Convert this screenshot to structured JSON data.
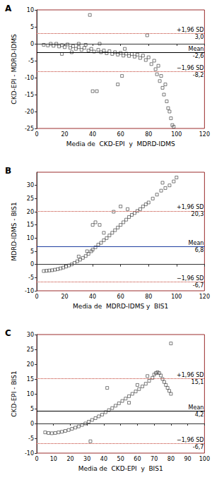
{
  "chart_data": [
    {
      "type": "scatter",
      "title": "A",
      "xlabel": "Media de  CKD-EPI  y  MDRD-IDMS",
      "ylabel": "CKD-EPI - MDRD-IDMS",
      "xlim": [
        0,
        120
      ],
      "xticks": [
        0,
        20,
        40,
        60,
        80,
        100,
        120
      ],
      "ylim": [
        -25,
        10
      ],
      "yticks": [
        -25,
        -20,
        -15,
        -10,
        -5,
        0,
        5,
        10
      ],
      "grid": false,
      "color": "#333333",
      "marker": "square_open",
      "x": [
        5,
        8,
        10,
        12,
        14,
        16,
        18,
        20,
        22,
        24,
        26,
        28,
        30,
        32,
        34,
        35,
        37,
        38,
        39,
        40,
        41,
        43,
        44,
        46,
        48,
        50,
        52,
        54,
        56,
        58,
        58,
        60,
        62,
        64,
        66,
        68,
        70,
        72,
        74,
        76,
        78,
        79,
        80,
        82,
        84,
        85,
        86,
        87,
        88,
        89,
        90,
        91,
        92,
        93,
        94,
        95,
        96,
        97,
        98,
        61,
        63,
        18,
        25,
        30,
        45
      ],
      "values": [
        -0.3,
        -0.5,
        0,
        -0.6,
        0,
        -0.8,
        -0.4,
        -1.0,
        -0.2,
        -1.2,
        -0.7,
        -1.5,
        -1.0,
        -1.8,
        -1.2,
        -0.3,
        -2.0,
        8.5,
        -1.5,
        -14,
        -2.3,
        -14,
        -1.8,
        -2.5,
        -2.0,
        -2.8,
        -2.2,
        -3.0,
        -2.5,
        -12,
        -3.2,
        -2.7,
        -3.5,
        -2.9,
        -3.6,
        -3.0,
        -3.8,
        -3.2,
        -4.2,
        -3.5,
        -4.8,
        2.5,
        -4.0,
        -6,
        -5,
        -7.5,
        -9,
        -6.5,
        -11,
        -9.5,
        -13,
        -15,
        -12,
        -17,
        -19,
        -20,
        -22,
        -24,
        -24.5,
        -9.5,
        -1.5,
        -3,
        -2.5,
        0,
        0
      ],
      "lines": [
        {
          "name": "+1,96 SD",
          "value": 3.0,
          "label": "3,0",
          "color": "#c0392b",
          "line_style": "dotted"
        },
        {
          "name": "Mean",
          "value": -2.6,
          "label": "-2,6",
          "color": "#000000",
          "line_style": "solid"
        },
        {
          "name": "−1,96 SD",
          "value": -8.2,
          "label": "-8,2",
          "color": "#c0392b",
          "line_style": "dotted"
        }
      ]
    },
    {
      "type": "scatter",
      "title": "B",
      "xlabel": "Media de  MDRD-IDMS y  BIS1",
      "ylabel": "MDRD-IDMS - BIS1",
      "xlim": [
        0,
        120
      ],
      "xticks": [
        0,
        20,
        40,
        60,
        80,
        100,
        120
      ],
      "ylim": [
        -10,
        35
      ],
      "yticks": [
        -10,
        -5,
        0,
        5,
        10,
        15,
        20,
        25,
        30
      ],
      "grid": false,
      "color": "#333333",
      "marker": "square_open",
      "x": [
        5,
        7,
        9,
        11,
        13,
        15,
        17,
        19,
        21,
        23,
        25,
        27,
        29,
        31,
        33,
        35,
        37,
        39,
        40,
        42,
        44,
        46,
        48,
        50,
        52,
        54,
        56,
        58,
        60,
        62,
        64,
        66,
        68,
        70,
        72,
        74,
        76,
        78,
        80,
        83,
        86,
        89,
        92,
        95,
        98,
        100,
        40,
        42,
        45,
        55,
        60,
        30,
        36,
        48,
        65,
        90
      ],
      "values": [
        -2.5,
        -2.4,
        -2.3,
        -2.2,
        -2.0,
        -1.8,
        -1.5,
        -1.2,
        -0.8,
        -0.4,
        0,
        0.6,
        1.2,
        1.8,
        2.5,
        3.2,
        4.0,
        5.0,
        5.6,
        6.5,
        7.5,
        8.2,
        9.2,
        10.0,
        11.0,
        12.0,
        13.0,
        14.0,
        15.0,
        16.0,
        17.0,
        18.0,
        18.8,
        19.5,
        20.3,
        21.0,
        22.0,
        22.8,
        23.5,
        25.0,
        26.5,
        28.0,
        29.0,
        30.0,
        31.5,
        33.0,
        15,
        16,
        15,
        20,
        22,
        3,
        5,
        12,
        21,
        31
      ],
      "lines": [
        {
          "name": "+1,96 SD",
          "value": 20.3,
          "label": "20,3",
          "color": "#c0392b",
          "line_style": "dotted"
        },
        {
          "name": "Mean",
          "value": 6.8,
          "label": "6,8",
          "color": "#1f3fa0",
          "line_style": "solid"
        },
        {
          "name": "−1,96 SD",
          "value": -6.7,
          "label": "-6,7",
          "color": "#c0392b",
          "line_style": "dotted"
        }
      ]
    },
    {
      "type": "scatter",
      "title": "C",
      "xlabel": "Media de  CKD-EPI  y  BIS1",
      "ylabel": "CKD-EPI - BIS1",
      "xlim": [
        0,
        100
      ],
      "xticks": [
        0,
        10,
        20,
        30,
        40,
        50,
        60,
        70,
        80,
        90,
        100
      ],
      "ylim": [
        -10,
        30
      ],
      "yticks": [
        -10,
        -5,
        0,
        5,
        10,
        15,
        20,
        25,
        30
      ],
      "grid": false,
      "color": "#333333",
      "marker": "square_open",
      "x": [
        5,
        7,
        9,
        11,
        13,
        15,
        17,
        19,
        21,
        23,
        25,
        27,
        29,
        31,
        33,
        35,
        37,
        39,
        41,
        43,
        45,
        47,
        49,
        51,
        53,
        55,
        57,
        59,
        61,
        63,
        65,
        67,
        69,
        70,
        71,
        72,
        73,
        74,
        75,
        76,
        77,
        78,
        79,
        80,
        80,
        42,
        32,
        60,
        66,
        55
      ],
      "values": [
        -3.0,
        -3.2,
        -3.3,
        -3.2,
        -3.0,
        -2.8,
        -2.5,
        -2.2,
        -1.8,
        -1.4,
        -1.0,
        -0.5,
        0,
        0.6,
        1.2,
        1.8,
        2.4,
        3.0,
        3.8,
        4.5,
        5.2,
        6.0,
        6.8,
        7.6,
        8.4,
        9.2,
        10.0,
        10.8,
        11.6,
        12.5,
        13.4,
        14.4,
        15.4,
        16.5,
        17.0,
        17.3,
        17.0,
        16.2,
        15.0,
        14.0,
        13.0,
        12.0,
        11.0,
        10.0,
        27.0,
        12.0,
        -6.0,
        13.0,
        16.0,
        7.0
      ],
      "lines": [
        {
          "name": "+1,96 SD",
          "value": 15.1,
          "label": "15,1",
          "color": "#c0392b",
          "line_style": "dotted"
        },
        {
          "name": "Mean",
          "value": 4.2,
          "label": "4,2",
          "color": "#000000",
          "line_style": "solid"
        },
        {
          "name": "−1,96 SD",
          "value": -6.7,
          "label": "-6,7",
          "color": "#c0392b",
          "line_style": "dotted"
        }
      ]
    }
  ]
}
